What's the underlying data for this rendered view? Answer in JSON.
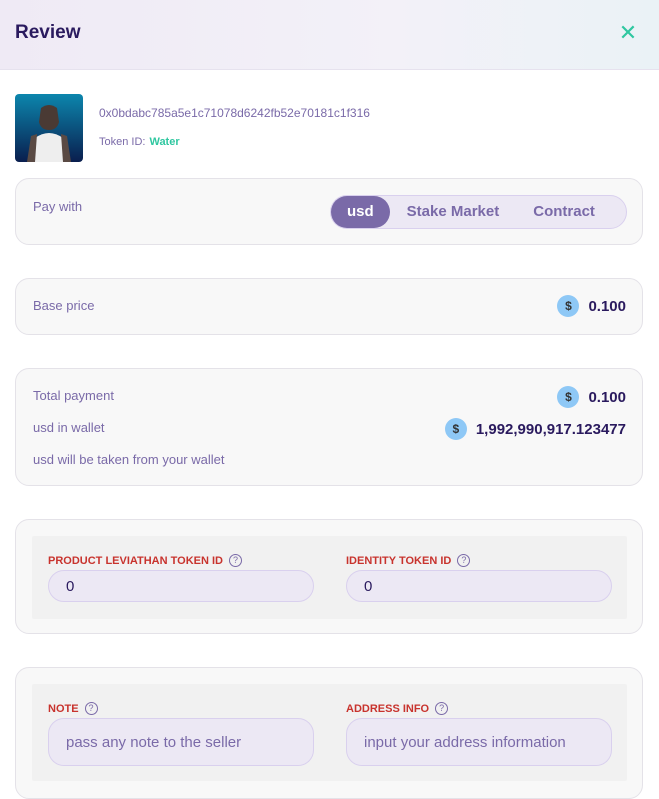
{
  "header": {
    "title": "Review",
    "close_icon": "close-icon"
  },
  "token": {
    "address": "0x0bdabc785a5e1c71078d6242fb52e70181c1f316",
    "token_id_label": "Token ID:",
    "token_id_value": "Water"
  },
  "pay_with": {
    "label": "Pay with",
    "options": [
      "usd",
      "Stake Market",
      "Contract"
    ],
    "selected": "usd"
  },
  "base_price": {
    "label": "Base price",
    "currency_icon": "$",
    "value": "0.100"
  },
  "summary": {
    "total_label": "Total payment",
    "total_value": "0.100",
    "wallet_label": "usd in wallet",
    "wallet_value": "1,992,990,917.123477",
    "note": "usd will be taken from your wallet",
    "currency_icon": "$"
  },
  "token_fields": {
    "product_label": "PRODUCT LEVIATHAN TOKEN ID",
    "product_value": "0",
    "identity_label": "IDENTITY TOKEN ID",
    "identity_value": "0",
    "help_icon": "?"
  },
  "note_fields": {
    "note_label": "NOTE",
    "note_placeholder": "pass any note to the seller",
    "address_label": "ADDRESS INFO",
    "address_placeholder": "input your address information",
    "help_icon": "?"
  },
  "colors": {
    "accent": "#7a6aa8",
    "title": "#2a1a5e",
    "success": "#2fc7a0",
    "required_label": "#c8332d",
    "coin": "#8ec8f6"
  }
}
